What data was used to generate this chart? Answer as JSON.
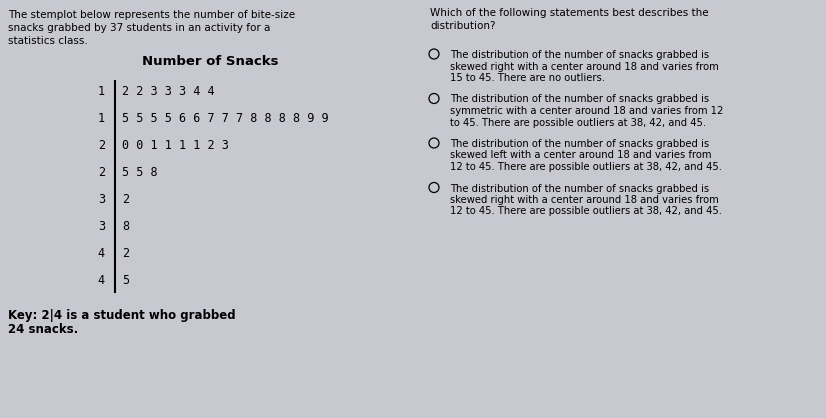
{
  "background_color": "#c8c8d0",
  "left_intro_lines": [
    "The stemplot below represents the number of bite-size",
    "snacks grabbed by 37 students in an activity for a",
    "statistics class."
  ],
  "stem_title": "Number of Snacks",
  "stem_data": [
    {
      "stem": "1",
      "leaves": "2 2 3 3 3 4 4"
    },
    {
      "stem": "1",
      "leaves": "5 5 5 5 6 6 7 7 7 8 8 8 8 9 9"
    },
    {
      "stem": "2",
      "leaves": "0 0 1 1 1 1 2 3"
    },
    {
      "stem": "2",
      "leaves": "5 5 8"
    },
    {
      "stem": "3",
      "leaves": "2"
    },
    {
      "stem": "3",
      "leaves": "8"
    },
    {
      "stem": "4",
      "leaves": "2"
    },
    {
      "stem": "4",
      "leaves": "5"
    }
  ],
  "key_line1": "Key: 2|4 is a student who grabbed",
  "key_line2": "24 snacks.",
  "right_question_lines": [
    "Which of the following statements best describes the",
    "distribution?"
  ],
  "right_options": [
    [
      "The distribution of the number of snacks grabbed is",
      "skewed right with a center around 18 and varies from",
      "15 to 45. There are no outliers."
    ],
    [
      "The distribution of the number of snacks grabbed is",
      "symmetric with a center around 18 and varies from 12",
      "to 45. There are possible outliers at 38, 42, and 45."
    ],
    [
      "The distribution of the number of snacks grabbed is",
      "skewed left with a center around 18 and varies from",
      "12 to 45. There are possible outliers at 38, 42, and 45."
    ],
    [
      "The distribution of the number of snacks grabbed is",
      "skewed right with a center around 18 and varies from",
      "12 to 45. There are possible outliers at 38, 42, and 45."
    ]
  ],
  "font_size_intro": 7.5,
  "font_size_title": 9.5,
  "font_size_stem": 8.5,
  "font_size_key": 8.5,
  "font_size_question": 7.5,
  "font_size_options": 7.2
}
